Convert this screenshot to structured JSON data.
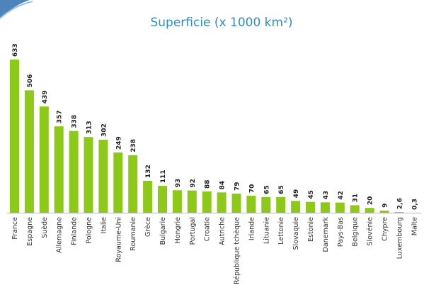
{
  "colors": {
    "bar": "#8dc919",
    "title": "#2e8fc4",
    "axis": "#bdbdbd",
    "accent_swoosh": "#2e6fb0"
  },
  "chart_data": {
    "type": "bar",
    "title": "Superficie (x 1000 km²)",
    "xlabel": "",
    "ylabel": "",
    "ylim": [
      0,
      633
    ],
    "grid": false,
    "legend": "none",
    "categories": [
      "France",
      "Espagne",
      "Suède",
      "Allemagne",
      "Finlande",
      "Pologne",
      "Italie",
      "Royaume-Uni",
      "Roumanie",
      "Grèce",
      "Bulgarie",
      "Hongrie",
      "Portugal",
      "Croatie",
      "Autriche",
      "République tchèque",
      "Irlande",
      "Lituanie",
      "Lettonie",
      "Slovaquie",
      "Estonie",
      "Danemark",
      "Pays-Bas",
      "Belgique",
      "Slovénie",
      "Chypre",
      "Luxembourg",
      "Malte"
    ],
    "values": [
      633,
      506,
      439,
      357,
      338,
      313,
      302,
      249,
      238,
      132,
      111,
      93,
      92,
      88,
      84,
      79,
      70,
      65,
      65,
      49,
      45,
      43,
      42,
      31,
      20,
      9,
      2.6,
      0.3
    ],
    "value_labels": [
      "633",
      "506",
      "439",
      "357",
      "338",
      "313",
      "302",
      "249",
      "238",
      "132",
      "111",
      "93",
      "92",
      "88",
      "84",
      "79",
      "70",
      "65",
      "65",
      "49",
      "45",
      "43",
      "42",
      "31",
      "20",
      "9",
      "2,6",
      "0,3"
    ]
  }
}
